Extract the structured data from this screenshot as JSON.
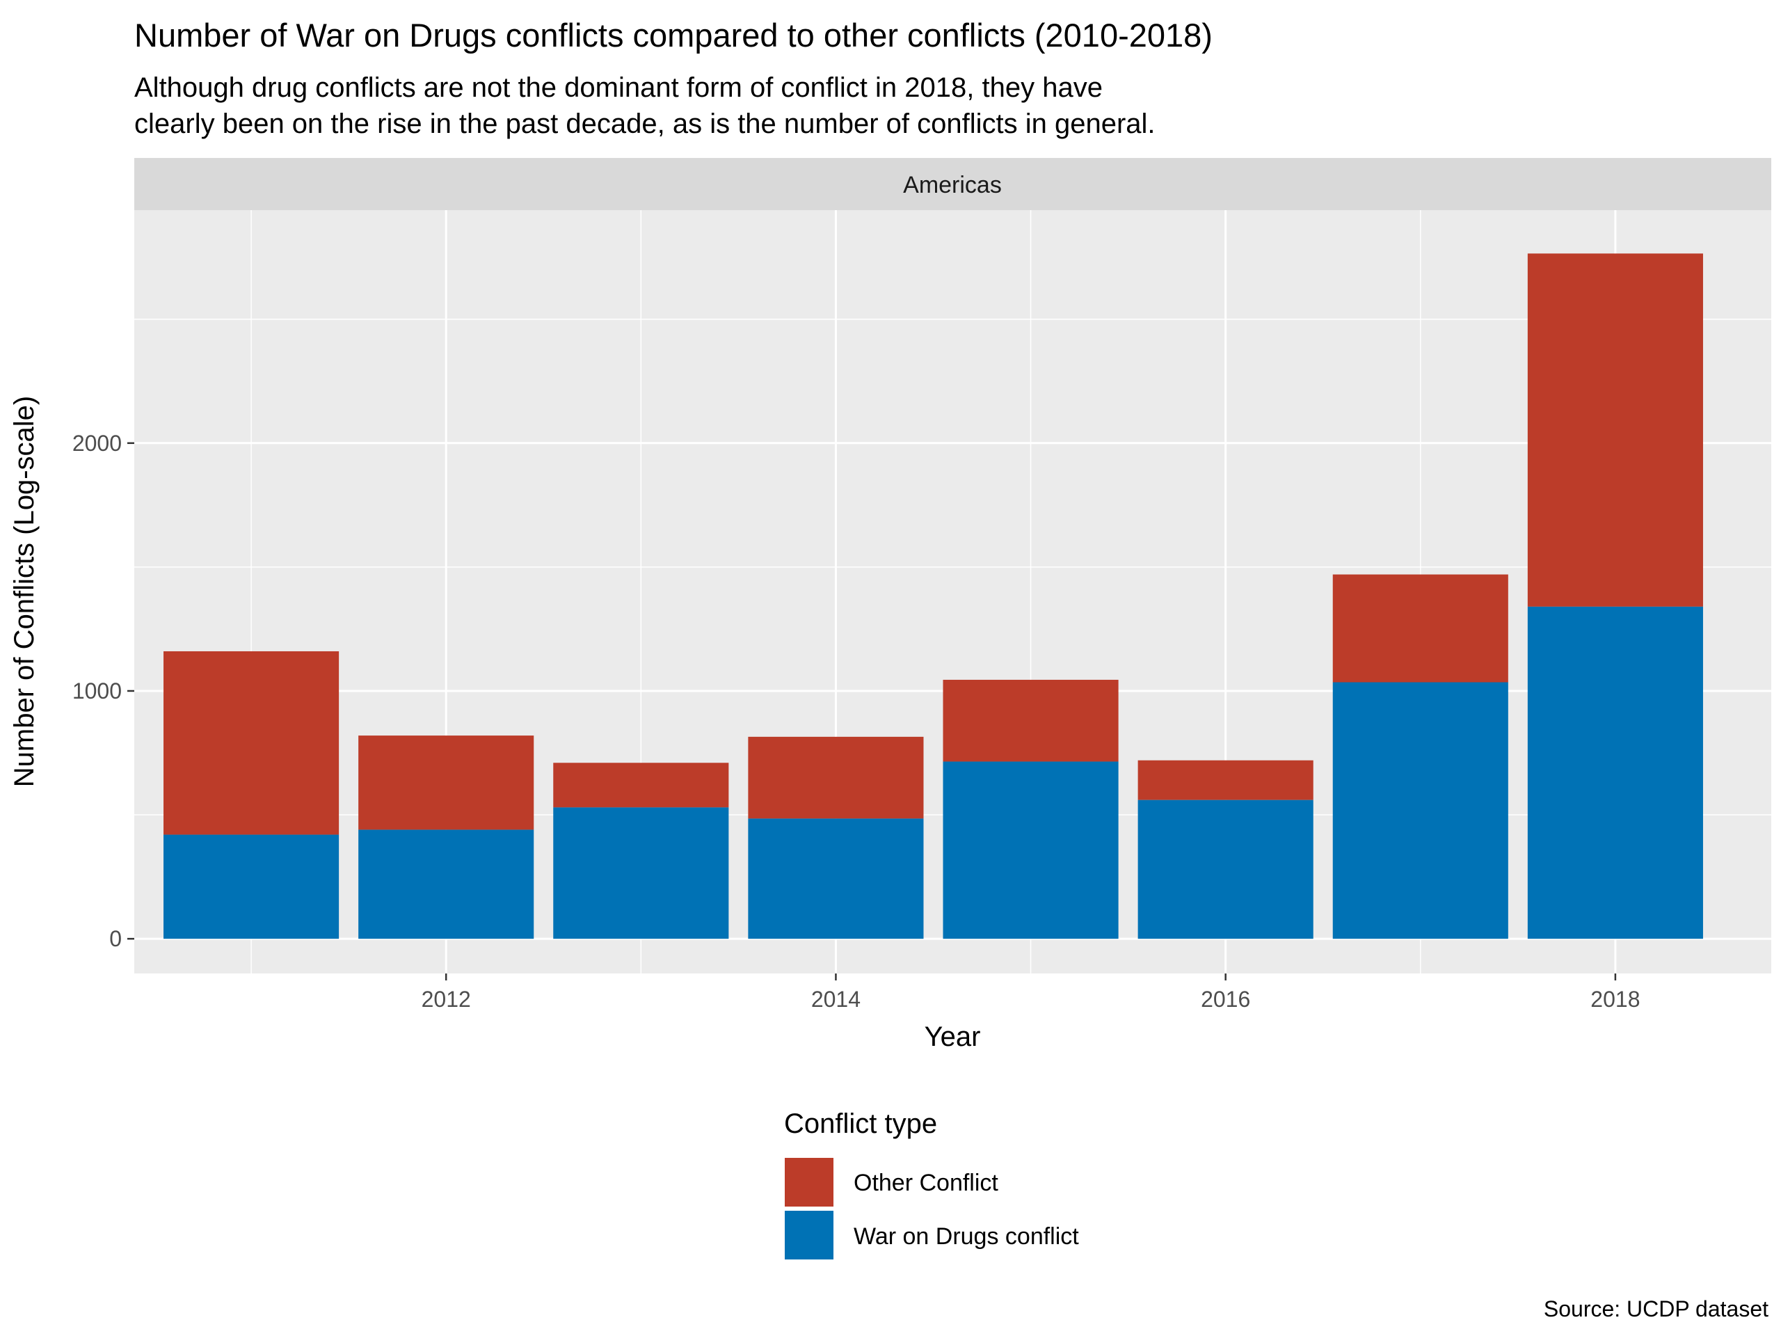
{
  "chart_data": {
    "type": "bar",
    "stacked": true,
    "title": "Number of War on Drugs conflicts compared to other conflicts (2010-2018)",
    "subtitle_lines": [
      "Although drug conflicts are not the dominant form of conflict in 2018, they have",
      "clearly been on the rise in the past decade, as is the number of conflicts in general."
    ],
    "facet_label": "Americas",
    "xlabel": "Year",
    "ylabel": "Number of Conflicts (Log-scale)",
    "x": [
      2011,
      2012,
      2013,
      2014,
      2015,
      2016,
      2017,
      2018
    ],
    "x_ticks": [
      2012,
      2014,
      2016,
      2018
    ],
    "xlim": [
      2010.4,
      2018.8
    ],
    "y_ticks": [
      0,
      1000,
      2000
    ],
    "ylim": [
      -140,
      2940
    ],
    "grid": true,
    "legend": {
      "title": "Conflict type",
      "position": "bottom"
    },
    "series": [
      {
        "name": "War on Drugs conflict",
        "color": "#0072B5",
        "values": [
          420,
          440,
          530,
          485,
          715,
          560,
          1035,
          1340
        ]
      },
      {
        "name": "Other Conflict",
        "color": "#BC3C29",
        "values": [
          740,
          380,
          180,
          330,
          330,
          160,
          435,
          1425
        ]
      }
    ],
    "legend_order": [
      "Other Conflict",
      "War on Drugs conflict"
    ],
    "caption": "Source: UCDP dataset"
  }
}
